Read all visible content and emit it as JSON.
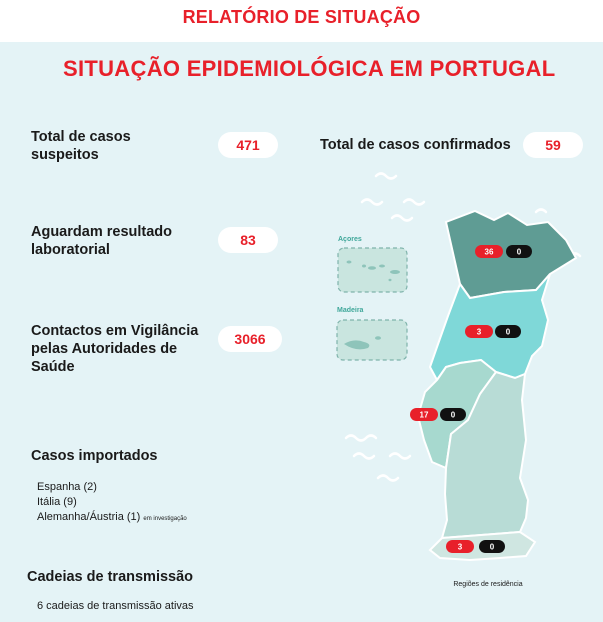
{
  "header": {
    "report_title": "RELATÓRIO DE SITUAÇÃO"
  },
  "main_title": "SITUAÇÃO EPIDEMIOLÓGICA EM PORTUGAL",
  "stats": {
    "suspected": {
      "label_line1": "Total de casos",
      "label_line2": "suspeitos",
      "value": "471"
    },
    "confirmed": {
      "label": "Total de casos confirmados",
      "value": "59"
    },
    "awaiting": {
      "label_line1": "Aguardam resultado",
      "label_line2": "laboratorial",
      "value": "83"
    },
    "contacts": {
      "label_line1": "Contactos em Vigilância",
      "label_line2": "pelas Autoridades de",
      "label_line3": "Saúde",
      "value": "3066"
    }
  },
  "imported": {
    "title": "Casos importados",
    "items": [
      {
        "text": "Espanha (2)"
      },
      {
        "text": "Itália (9)"
      },
      {
        "text": "Alemanha/Áustria (1)",
        "note": "em investigação"
      }
    ]
  },
  "chains": {
    "title": "Cadeias de transmissão",
    "text": "6 cadeias de transmissão ativas"
  },
  "map": {
    "islands": {
      "acores": "Açores",
      "madeira": "Madeira"
    },
    "caption": "Regiões de residência",
    "regions": [
      {
        "name": "Norte",
        "confirmed": "36",
        "deaths": "0"
      },
      {
        "name": "Centro",
        "confirmed": "3",
        "deaths": "0"
      },
      {
        "name": "Lisboa e Vale do Tejo",
        "confirmed": "17",
        "deaths": "0"
      },
      {
        "name": "Alentejo",
        "confirmed": "",
        "deaths": ""
      },
      {
        "name": "Algarve",
        "confirmed": "3",
        "deaths": "0"
      }
    ]
  },
  "colors": {
    "accent_red": "#e8202a",
    "background": "#e4f3f6",
    "norte": "#5f9c94",
    "centro": "#7fd8d8",
    "lvt": "#a7d9cf",
    "south": "#b8dcd6",
    "badge_black": "#111111"
  }
}
